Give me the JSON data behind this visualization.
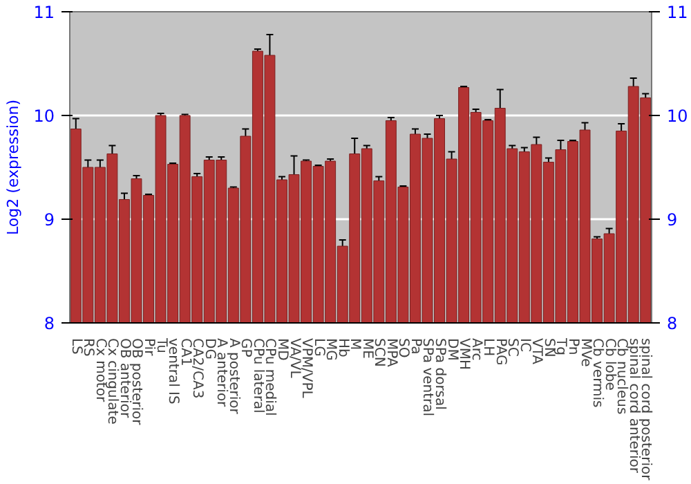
{
  "chart_data": {
    "type": "bar",
    "ylabel": "Log2 (expression)",
    "categories": [
      "LS",
      "RS",
      "Cx motor",
      "Cx cingulate",
      "OB anterior",
      "OB posterior",
      "Pir",
      "Tu",
      "ventral IS",
      "CA1",
      "CA2/CA3",
      "DG",
      "A anterior",
      "A posterior",
      "GP",
      "CPu lateral",
      "CPu medial",
      "MD",
      "VA/VL",
      "VPM/VPL",
      "LG",
      "MG",
      "Hb",
      "M",
      "ME",
      "SCN",
      "MPA",
      "SO",
      "Pa",
      "SPa ventral",
      "SPa dorsal",
      "DM",
      "VMH",
      "Arc",
      "LH",
      "PAG",
      "SC",
      "IC",
      "VTA",
      "SN",
      "Tg",
      "Pn",
      "MVe",
      "Cb vermis",
      "Cb lobe",
      "Cb nucleus",
      "spinal cord anterior",
      "spinal cord posterior"
    ],
    "values": [
      9.87,
      9.5,
      9.5,
      9.63,
      9.19,
      9.39,
      9.23,
      10.0,
      9.53,
      10.0,
      9.41,
      9.57,
      9.57,
      9.3,
      9.8,
      10.62,
      10.58,
      9.38,
      9.43,
      9.56,
      9.51,
      9.56,
      8.74,
      9.63,
      9.68,
      9.37,
      9.95,
      9.31,
      9.82,
      9.78,
      9.97,
      9.58,
      10.27,
      10.03,
      9.95,
      10.07,
      9.68,
      9.65,
      9.72,
      9.55,
      9.67,
      9.75,
      9.86,
      8.81,
      8.86,
      9.85,
      10.28,
      10.17
    ],
    "errors": [
      0.1,
      0.07,
      0.07,
      0.08,
      0.06,
      0.03,
      0.01,
      0.02,
      0.01,
      0.01,
      0.03,
      0.03,
      0.03,
      0.01,
      0.07,
      0.02,
      0.2,
      0.03,
      0.18,
      0.01,
      0.01,
      0.02,
      0.06,
      0.15,
      0.03,
      0.04,
      0.03,
      0.01,
      0.05,
      0.04,
      0.03,
      0.07,
      0.01,
      0.03,
      0.01,
      0.18,
      0.03,
      0.04,
      0.07,
      0.04,
      0.09,
      0.01,
      0.07,
      0.02,
      0.05,
      0.07,
      0.08,
      0.04
    ],
    "color": "#b33333",
    "ylim": [
      8,
      11
    ],
    "yticks": [
      8,
      9,
      10,
      11
    ],
    "y2lim": [
      8,
      11
    ],
    "y2ticks": [
      8,
      9,
      10,
      11
    ],
    "grid": "y"
  }
}
